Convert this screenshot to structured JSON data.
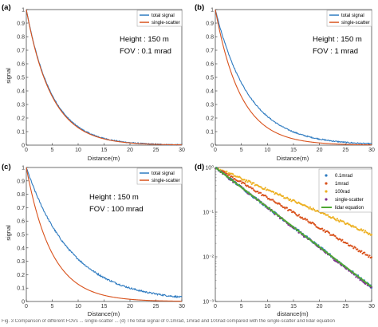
{
  "caption": "Fig. 3 Comparison of different FOVs ... single-scatter ... (d) The total signal of 0.1mrad, 1mrad and 100rad compared with the single-scatter and lidar equation",
  "colors": {
    "total": "#2d7ac0",
    "single": "#d9521c",
    "mrad01": "#2d7ac0",
    "mrad1": "#d9521c",
    "rad100": "#edb020",
    "single_scatter_d": "#7e2f8e",
    "lidar_eq": "#4ea833"
  },
  "chart_data": [
    {
      "id": "a",
      "type": "line",
      "panel_label": "(a)",
      "xlabel": "Distance(m)",
      "ylabel": "signal",
      "xlim": [
        0,
        30
      ],
      "ylim": [
        0,
        1
      ],
      "x_ticks": [
        0,
        5,
        10,
        15,
        20,
        25,
        30
      ],
      "y_ticks": [
        0,
        0.1,
        0.2,
        0.3,
        0.4,
        0.5,
        0.6,
        0.7,
        0.8,
        0.9,
        1
      ],
      "annotation": [
        "Height : 150 m",
        "FOV : 0.1 mrad"
      ],
      "legend_position": "top-right",
      "series": [
        {
          "name": "total signal",
          "decay_per_m": 0.2,
          "x_range": [
            0,
            30
          ],
          "noise": 0.004
        },
        {
          "name": "single-scatter",
          "decay_per_m": 0.205,
          "x_range": [
            0,
            30
          ],
          "noise": 0
        }
      ]
    },
    {
      "id": "b",
      "type": "line",
      "panel_label": "(b)",
      "xlabel": "Distance(m)",
      "ylabel": "signal",
      "xlim": [
        0,
        30
      ],
      "ylim": [
        0,
        1
      ],
      "x_ticks": [
        0,
        5,
        10,
        15,
        20,
        25,
        30
      ],
      "y_ticks": [
        0,
        0.1,
        0.2,
        0.3,
        0.4,
        0.5,
        0.6,
        0.7,
        0.8,
        0.9,
        1
      ],
      "annotation": [
        "Height : 150 m",
        "FOV : 1 mrad"
      ],
      "legend_position": "top-right",
      "series": [
        {
          "name": "total signal",
          "decay_per_m": 0.155,
          "x_range": [
            0,
            30
          ],
          "noise": 0.004
        },
        {
          "name": "single-scatter",
          "decay_per_m": 0.205,
          "x_range": [
            0,
            30
          ],
          "noise": 0
        }
      ]
    },
    {
      "id": "c",
      "type": "line",
      "panel_label": "(c)",
      "xlabel": "Distance(m)",
      "ylabel": "signal",
      "xlim": [
        0,
        30
      ],
      "ylim": [
        0,
        1
      ],
      "x_ticks": [
        0,
        5,
        10,
        15,
        20,
        25,
        30
      ],
      "y_ticks": [
        0,
        0.1,
        0.2,
        0.3,
        0.4,
        0.5,
        0.6,
        0.7,
        0.8,
        0.9,
        1
      ],
      "annotation": [
        "Height : 150 m",
        "FOV : 100 mrad"
      ],
      "legend_position": "top-right",
      "series": [
        {
          "name": "total signal",
          "decay_per_m": 0.115,
          "x_range": [
            0,
            30
          ],
          "noise": 0.006
        },
        {
          "name": "single-scatter",
          "decay_per_m": 0.205,
          "x_range": [
            0,
            30
          ],
          "noise": 0
        }
      ]
    },
    {
      "id": "d",
      "type": "scatter",
      "panel_label": "(d)",
      "xlabel": "distance(m)",
      "ylabel": "",
      "y_scale": "log",
      "xlim": [
        0,
        30
      ],
      "ylim": [
        0.001,
        1
      ],
      "x_ticks": [
        0,
        5,
        10,
        15,
        20,
        25,
        30
      ],
      "y_tick_labels": [
        "10⁻³",
        "10⁻²",
        "10⁻¹",
        "10⁰"
      ],
      "legend_position": "top-right",
      "series": [
        {
          "name": "0.1mrad",
          "decay_per_m": 0.205,
          "x_range": [
            0,
            30
          ],
          "style": "markers"
        },
        {
          "name": "1mrad",
          "decay_per_m": 0.155,
          "x_range": [
            1,
            30
          ],
          "style": "markers"
        },
        {
          "name": "100rad",
          "decay_per_m": 0.115,
          "x_range": [
            0,
            30
          ],
          "style": "markers"
        },
        {
          "name": "single-scatter",
          "decay_per_m": 0.207,
          "x_range": [
            0,
            30
          ],
          "style": "markers"
        },
        {
          "name": "lidar equation",
          "decay_per_m": 0.205,
          "x_range": [
            0,
            30
          ],
          "style": "line"
        }
      ]
    }
  ]
}
